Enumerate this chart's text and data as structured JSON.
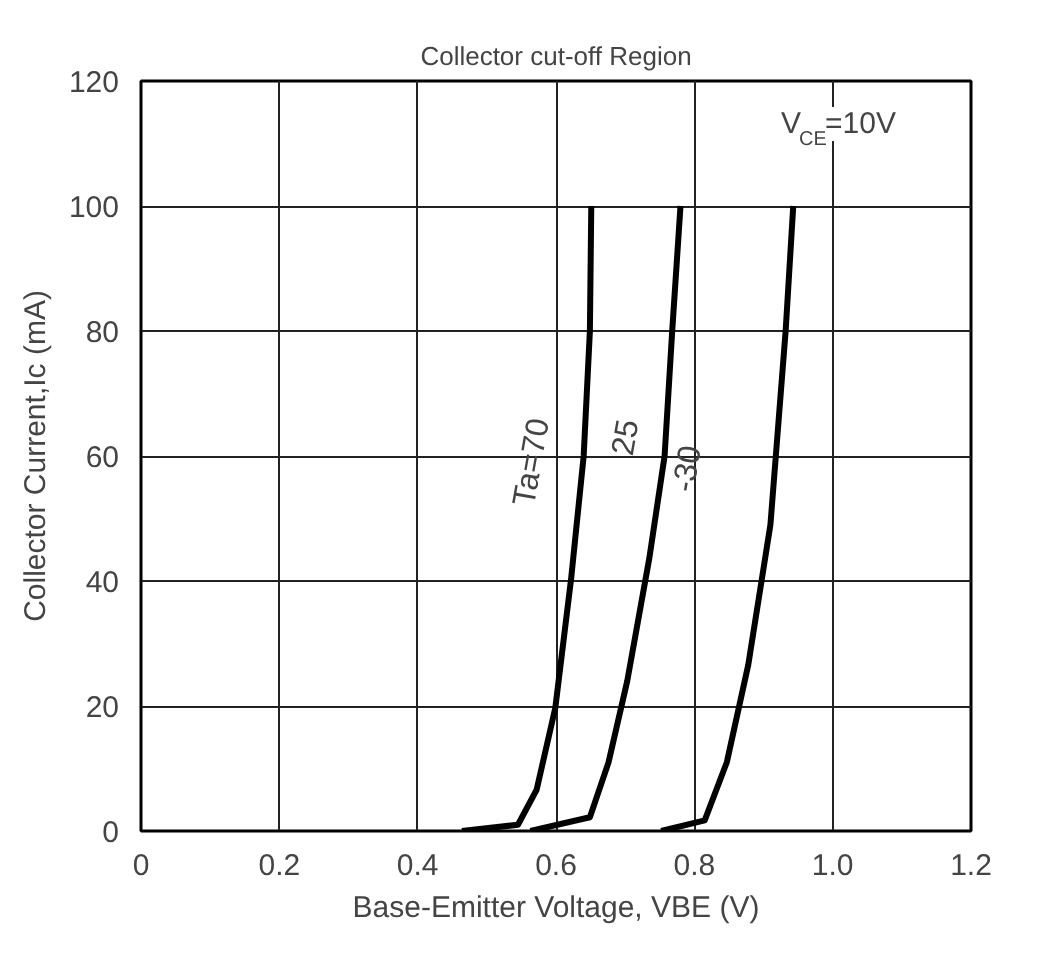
{
  "chart_data": {
    "type": "line",
    "title": "Collector cut-off Region",
    "xlabel": "Base-Emitter Voltage, VBE (V)",
    "ylabel": "Collector Current,Ic (mA)",
    "xlim": [
      0,
      1.2
    ],
    "ylim": [
      0,
      120
    ],
    "xticks": [
      0,
      0.2,
      0.4,
      0.6,
      0.8,
      {
        "value": 1.0,
        "label": "1.0"
      },
      1.2
    ],
    "yticks": [
      0,
      20,
      40,
      60,
      80,
      100,
      120
    ],
    "grid": true,
    "marker": "none",
    "line_style": "solid",
    "series": [
      {
        "color": "#000000",
        "x": [
          0.464,
          0.545,
          0.572,
          0.599,
          0.622,
          0.64,
          0.649,
          0.651
        ],
        "values": [
          0,
          1,
          6.6,
          19.7,
          40.5,
          60,
          80,
          100
        ]
      },
      {
        "color": "#000000",
        "x": [
          0.563,
          0.649,
          0.676,
          0.703,
          0.735,
          0.757,
          0.768,
          0.78
        ],
        "values": [
          0,
          2.2,
          11,
          24,
          43.7,
          60,
          80,
          100
        ]
      },
      {
        "color": "#000000",
        "x": [
          0.752,
          0.815,
          0.847,
          0.878,
          0.91,
          0.932,
          0.943
        ],
        "values": [
          0,
          1.7,
          11,
          26.6,
          49,
          80,
          100
        ]
      }
    ],
    "annotations": [
      "Ta=70",
      "25",
      "-30",
      "V$_{CE}$=10V"
    ]
  }
}
